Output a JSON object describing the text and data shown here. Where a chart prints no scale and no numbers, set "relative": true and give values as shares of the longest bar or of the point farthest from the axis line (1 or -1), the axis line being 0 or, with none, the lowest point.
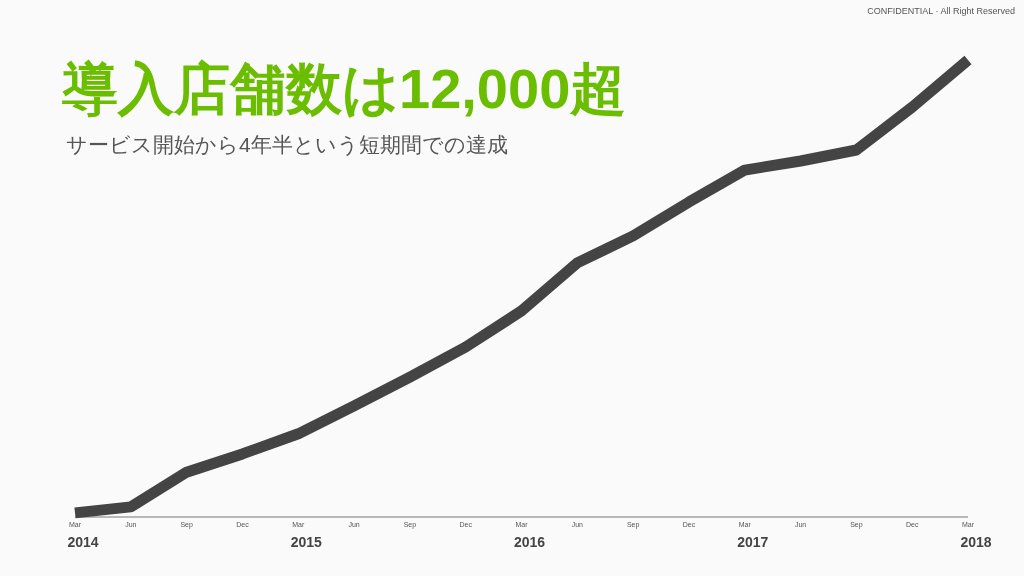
{
  "chart_data": {
    "type": "line",
    "title": "導入店舗数は12,000超",
    "subtitle": "サービス開始から4年半という短期間での達成",
    "relative": true,
    "x": [
      "2014-03",
      "2014-06",
      "2014-09",
      "2014-12",
      "2015-03",
      "2015-06",
      "2015-09",
      "2015-12",
      "2016-03",
      "2016-06",
      "2016-09",
      "2016-12",
      "2017-03",
      "2017-06",
      "2017-09",
      "2017-12",
      "2018-03"
    ],
    "series": [
      {
        "color": "#444444",
        "values": [
          0.009,
          0.022,
          0.098,
          0.138,
          0.182,
          0.243,
          0.306,
          0.372,
          0.451,
          0.556,
          0.615,
          0.689,
          0.759,
          0.779,
          0.803,
          0.897,
          1
        ]
      }
    ],
    "xlim": [
      "2014-03",
      "2018-03"
    ],
    "xticks": [
      {
        "value": "2014-03",
        "label": "Mar"
      },
      {
        "value": "2014-06",
        "label": "Jun"
      },
      {
        "value": "2014-09",
        "label": "Sep"
      },
      {
        "value": "2014-12",
        "label": "Dec"
      },
      {
        "value": "2015-03",
        "label": "Mar"
      },
      {
        "value": "2015-06",
        "label": "Jun"
      },
      {
        "value": "2015-09",
        "label": "Sep"
      },
      {
        "value": "2015-12",
        "label": "Dec"
      },
      {
        "value": "2016-03",
        "label": "Mar"
      },
      {
        "value": "2016-06",
        "label": "Jun"
      },
      {
        "value": "2016-09",
        "label": "Sep"
      },
      {
        "value": "2016-12",
        "label": "Dec"
      },
      {
        "value": "2017-03",
        "label": "Mar"
      },
      {
        "value": "2017-06",
        "label": "Jun"
      },
      {
        "value": "2017-09",
        "label": "Sep"
      },
      {
        "value": "2017-12",
        "label": "Dec"
      },
      {
        "value": "2018-03",
        "label": "Mar"
      }
    ],
    "annotations": [
      "2014",
      "2015",
      "2016",
      "2017",
      "2018",
      "CONFIDENTIAL · All Right Reserved"
    ],
    "grid": false,
    "marker": "none",
    "line_style": "solid"
  }
}
